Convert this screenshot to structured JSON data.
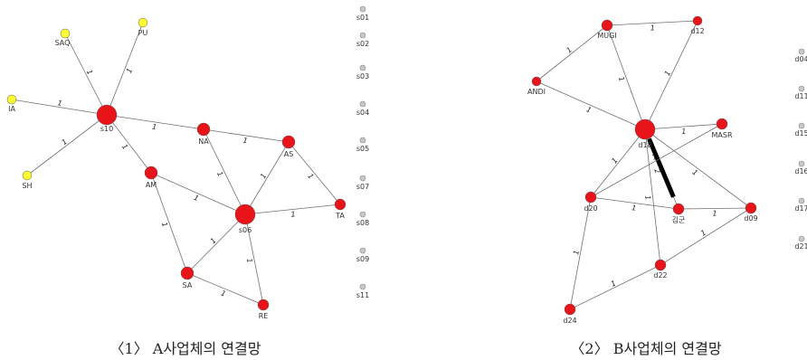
{
  "colors": {
    "node_red": "#e8141a",
    "node_yellow": "#ffff33",
    "node_gray": "#c8c8c8",
    "edge": "#707070",
    "edge_strong": "#000000"
  },
  "networks": [
    {
      "caption": "〈1〉 A사업체의 연결망",
      "nodes": [
        {
          "id": "s10",
          "label": "s10",
          "color": "red"
        },
        {
          "id": "SAQ",
          "label": "SAQ",
          "color": "yellow"
        },
        {
          "id": "PU",
          "label": "PU",
          "color": "yellow"
        },
        {
          "id": "IA",
          "label": "IA",
          "color": "yellow"
        },
        {
          "id": "SH",
          "label": "SH",
          "color": "yellow"
        },
        {
          "id": "NA",
          "label": "NA",
          "color": "red"
        },
        {
          "id": "AS",
          "label": "AS",
          "color": "red"
        },
        {
          "id": "AM",
          "label": "AM",
          "color": "red"
        },
        {
          "id": "s06",
          "label": "s06",
          "color": "red"
        },
        {
          "id": "TA",
          "label": "TA",
          "color": "red"
        },
        {
          "id": "SA",
          "label": "SA",
          "color": "red"
        },
        {
          "id": "RE",
          "label": "RE",
          "color": "red"
        },
        {
          "id": "s01",
          "label": "s01",
          "color": "gray"
        },
        {
          "id": "s02",
          "label": "s02",
          "color": "gray"
        },
        {
          "id": "s03",
          "label": "s03",
          "color": "gray"
        },
        {
          "id": "s04",
          "label": "s04",
          "color": "gray"
        },
        {
          "id": "s05",
          "label": "s05",
          "color": "gray"
        },
        {
          "id": "s07",
          "label": "s07",
          "color": "gray"
        },
        {
          "id": "s08",
          "label": "s08",
          "color": "gray"
        },
        {
          "id": "s09",
          "label": "s09",
          "color": "gray"
        },
        {
          "id": "s11",
          "label": "s11",
          "color": "gray"
        }
      ],
      "edges": [
        {
          "from": "s10",
          "to": "SAQ",
          "weight": "1"
        },
        {
          "from": "s10",
          "to": "PU",
          "weight": "1"
        },
        {
          "from": "s10",
          "to": "IA",
          "weight": "1"
        },
        {
          "from": "s10",
          "to": "SH",
          "weight": "1"
        },
        {
          "from": "s10",
          "to": "NA",
          "weight": "1"
        },
        {
          "from": "s10",
          "to": "AM",
          "weight": "1"
        },
        {
          "from": "NA",
          "to": "AS",
          "weight": "1"
        },
        {
          "from": "NA",
          "to": "s06",
          "weight": "1"
        },
        {
          "from": "AS",
          "to": "s06",
          "weight": "1"
        },
        {
          "from": "AS",
          "to": "TA",
          "weight": "1"
        },
        {
          "from": "AM",
          "to": "s06",
          "weight": "1"
        },
        {
          "from": "AM",
          "to": "SA",
          "weight": "1"
        },
        {
          "from": "s06",
          "to": "TA",
          "weight": "1"
        },
        {
          "from": "s06",
          "to": "SA",
          "weight": "1"
        },
        {
          "from": "s06",
          "to": "RE",
          "weight": "1"
        },
        {
          "from": "SA",
          "to": "RE",
          "weight": "1"
        }
      ]
    },
    {
      "caption": "〈2〉 B사업체의 연결망",
      "nodes": [
        {
          "id": "MUGI",
          "label": "MUGI",
          "color": "red"
        },
        {
          "id": "d12",
          "label": "d12",
          "color": "red"
        },
        {
          "id": "ANDI",
          "label": "ANDI",
          "color": "red"
        },
        {
          "id": "d18",
          "label": "d18",
          "color": "red"
        },
        {
          "id": "MASR",
          "label": "MASR",
          "color": "red"
        },
        {
          "id": "d20",
          "label": "d20",
          "color": "red"
        },
        {
          "id": "kimgun",
          "label": "김군",
          "color": "red"
        },
        {
          "id": "d09",
          "label": "d09",
          "color": "red"
        },
        {
          "id": "d22",
          "label": "d22",
          "color": "red"
        },
        {
          "id": "d24",
          "label": "d24",
          "color": "red"
        },
        {
          "id": "d04",
          "label": "d04",
          "color": "gray"
        },
        {
          "id": "d11",
          "label": "d11",
          "color": "gray"
        },
        {
          "id": "d15",
          "label": "d15",
          "color": "gray"
        },
        {
          "id": "d16",
          "label": "d16",
          "color": "gray"
        },
        {
          "id": "d17",
          "label": "d17",
          "color": "gray"
        },
        {
          "id": "d21",
          "label": "d21",
          "color": "gray"
        }
      ],
      "edges": [
        {
          "from": "MUGI",
          "to": "d12",
          "weight": "1"
        },
        {
          "from": "MUGI",
          "to": "ANDI",
          "weight": "1"
        },
        {
          "from": "MUGI",
          "to": "d18",
          "weight": "1"
        },
        {
          "from": "d12",
          "to": "d18",
          "weight": "1"
        },
        {
          "from": "ANDI",
          "to": "d18",
          "weight": "1"
        },
        {
          "from": "d18",
          "to": "MASR",
          "weight": "1"
        },
        {
          "from": "d18",
          "to": "d20",
          "weight": "1"
        },
        {
          "from": "d18",
          "to": "kimgun",
          "weight": "2",
          "strong": true
        },
        {
          "from": "d18",
          "to": "d09",
          "weight": "1"
        },
        {
          "from": "d18",
          "to": "d22",
          "weight": "1"
        },
        {
          "from": "MASR",
          "to": "d20",
          "weight": "1"
        },
        {
          "from": "d20",
          "to": "kimgun",
          "weight": "1"
        },
        {
          "from": "d20",
          "to": "d24",
          "weight": "1"
        },
        {
          "from": "kimgun",
          "to": "d09",
          "weight": "1"
        },
        {
          "from": "d09",
          "to": "d22",
          "weight": "1"
        },
        {
          "from": "d22",
          "to": "d24",
          "weight": "1"
        }
      ]
    }
  ]
}
